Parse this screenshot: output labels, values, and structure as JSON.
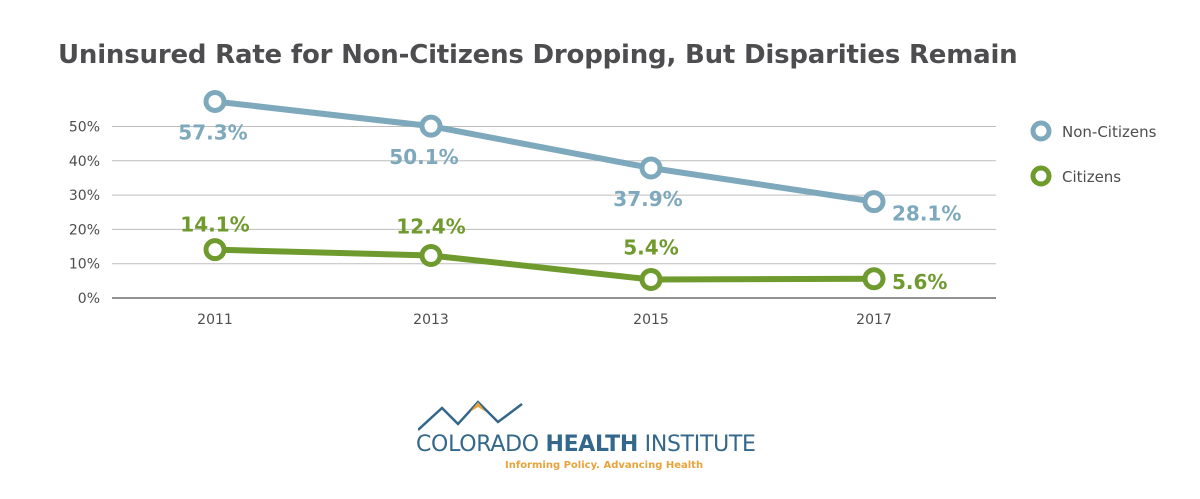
{
  "colors": {
    "non_citizens": "#7ea9bc",
    "citizens": "#6f9a2d",
    "grid": "#bdbdbd",
    "axis": "#6d6d6d",
    "text": "#4d4d4f",
    "logo_blue": "#33678b",
    "logo_gold": "#e8a33b"
  },
  "chart_data": {
    "type": "line",
    "title": "Uninsured Rate for Non-Citizens Dropping, But Disparities Remain",
    "xlabel": "",
    "ylabel": "",
    "categories": [
      "2011",
      "2013",
      "2015",
      "2017"
    ],
    "y_ticks": [
      "0%",
      "10%",
      "20%",
      "30%",
      "40%",
      "50%"
    ],
    "ylim": [
      0,
      50
    ],
    "grid": true,
    "legend_position": "right",
    "series": [
      {
        "name": "Non-Citizens",
        "values": [
          57.3,
          50.1,
          37.9,
          28.1
        ],
        "labels": [
          "57.3%",
          "50.1%",
          "37.9%",
          "28.1%"
        ]
      },
      {
        "name": "Citizens",
        "values": [
          14.1,
          12.4,
          5.4,
          5.6
        ],
        "labels": [
          "14.1%",
          "12.4%",
          "5.4%",
          "5.6%"
        ]
      }
    ]
  },
  "logo": {
    "name_prefix": "COLORADO ",
    "name_bold": "HEALTH",
    "name_suffix": " INSTITUTE",
    "tagline": "Informing Policy. Advancing Health"
  }
}
